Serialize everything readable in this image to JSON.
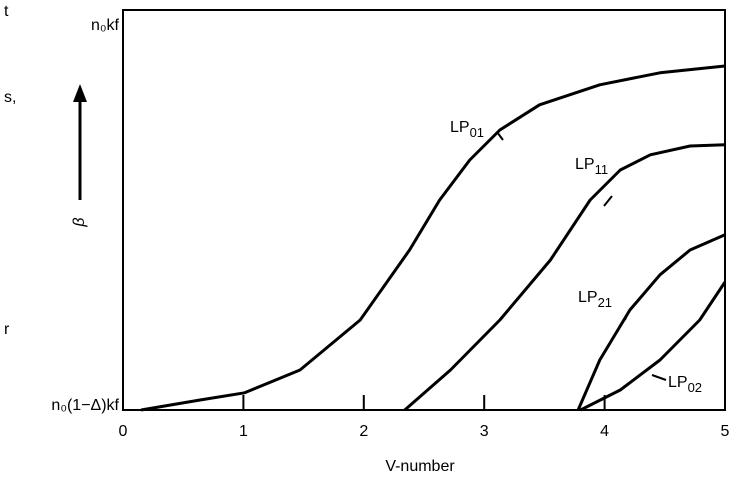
{
  "chart_data": {
    "type": "line",
    "x_label": "V-number",
    "y_label": "β",
    "clipped_margin_text": [
      "t",
      "s,",
      "r"
    ],
    "xlim": [
      0,
      5
    ],
    "xticks": [
      0,
      1,
      2,
      3,
      4,
      5
    ],
    "ylim": [
      0,
      1
    ],
    "yticks": [
      {
        "value": 0,
        "label": "n₀(1−Δ)kf"
      },
      {
        "value": 0.95,
        "label": "n₀kf"
      }
    ],
    "color": "#000000",
    "series": [
      {
        "name": "LP",
        "subscript": "01",
        "x": [
          0.15,
          0.64,
          1.01,
          1.47,
          1.97,
          2.38,
          2.63,
          2.88,
          3.13,
          3.46,
          3.96,
          4.46,
          5
        ],
        "values": [
          0,
          0.025,
          0.043,
          0.1,
          0.225,
          0.4,
          0.525,
          0.625,
          0.7,
          0.763,
          0.813,
          0.843,
          0.86
        ]
      },
      {
        "name": "LP",
        "subscript": "11",
        "x": [
          2.34,
          2.72,
          3.13,
          3.55,
          3.88,
          4.13,
          4.38,
          4.71,
          5
        ],
        "values": [
          0,
          0.1,
          0.225,
          0.375,
          0.525,
          0.6,
          0.638,
          0.66,
          0.663
        ]
      },
      {
        "name": "LP",
        "subscript": "21",
        "x": [
          3.78,
          3.96,
          4.21,
          4.46,
          4.71,
          5
        ],
        "values": [
          0,
          0.125,
          0.25,
          0.338,
          0.4,
          0.438
        ]
      },
      {
        "name": "LP",
        "subscript": "02",
        "x": [
          3.8,
          4.13,
          4.46,
          4.79,
          5
        ],
        "values": [
          0,
          0.05,
          0.125,
          0.225,
          0.32
        ]
      }
    ]
  }
}
